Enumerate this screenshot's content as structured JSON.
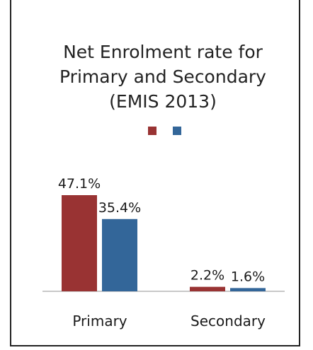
{
  "chart_data": {
    "type": "bar",
    "title": "Net Enrolment rate for Primary and Secondary (EMIS 2013)",
    "title_lines": [
      "Net Enrolment rate for",
      "Primary and Secondary",
      "(EMIS 2013)"
    ],
    "categories": [
      "Primary",
      "Secondary"
    ],
    "series": [
      {
        "values": [
          47.1,
          2.2
        ],
        "labels": [
          "47.1%",
          "2.2%"
        ],
        "color": "#993333"
      },
      {
        "values": [
          35.4,
          1.6
        ],
        "labels": [
          "35.4%",
          "1.6%"
        ],
        "color": "#336699"
      }
    ],
    "ylim": [
      0,
      47.1
    ],
    "legend": "top-center",
    "grid": false,
    "axis_color": "#c8c8c8"
  }
}
